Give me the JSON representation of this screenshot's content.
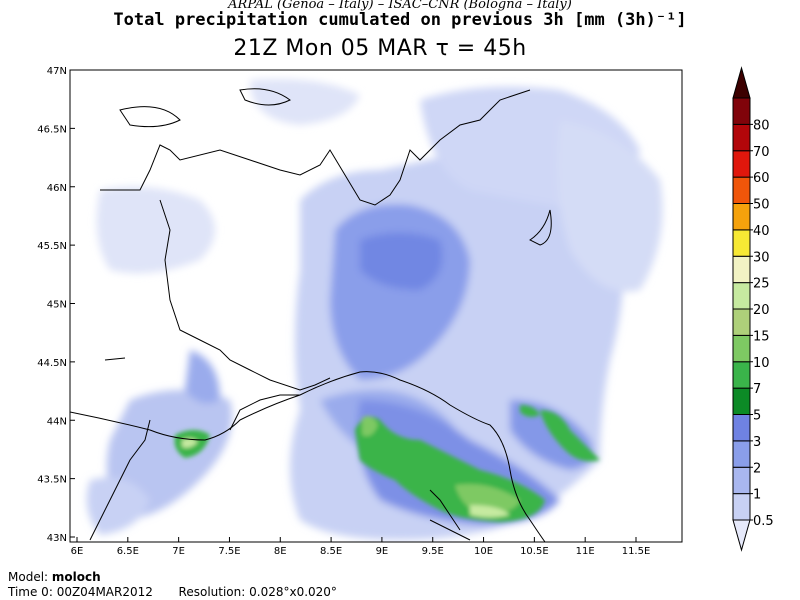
{
  "header": {
    "credit": "ARPAL (Genoa – Italy)  –  ISAC–CNR (Bologna – Italy)",
    "title": "Total precipitation cumulated on previous 3h [mm (3h)⁻¹]",
    "subtitle": "21Z Mon 05 MAR  τ = 45h"
  },
  "footer": {
    "model_label": "Model:",
    "model_value": "moloch",
    "time_label": "Time 0:",
    "time_value": "00Z04MAR2012",
    "resolution_label": "Resolution:",
    "resolution_value": "0.028°x0.020°"
  },
  "map": {
    "lat_ticks": [
      "47N",
      "46.5N",
      "46N",
      "45.5N",
      "45N",
      "44.5N",
      "44N",
      "43.5N",
      "43N"
    ],
    "lon_ticks": [
      "6E",
      "6.5E",
      "7E",
      "7.5E",
      "8E",
      "8.5E",
      "9E",
      "9.5E",
      "10E",
      "10.5E",
      "11E",
      "11.5E"
    ],
    "lon_range": [
      6,
      12
    ],
    "lat_range": [
      43,
      47
    ],
    "lines": [
      "coastline",
      "national-borders"
    ]
  },
  "colorbar": {
    "levels": [
      "0.5",
      "1",
      "2",
      "3",
      "5",
      "7",
      "10",
      "15",
      "20",
      "25",
      "30",
      "40",
      "50",
      "60",
      "70",
      "80"
    ],
    "colors": [
      "#e6e9fa",
      "#c8d1f4",
      "#a9b7ef",
      "#8a9eea",
      "#6f82e3",
      "#0c8a26",
      "#3ab44a",
      "#7ec963",
      "#aed07a",
      "#c6eaa0",
      "#f2f3c4",
      "#f7e934",
      "#f5a20c",
      "#f0560a",
      "#e0170c",
      "#b2060a",
      "#80030a",
      "#3c0000"
    ]
  }
}
